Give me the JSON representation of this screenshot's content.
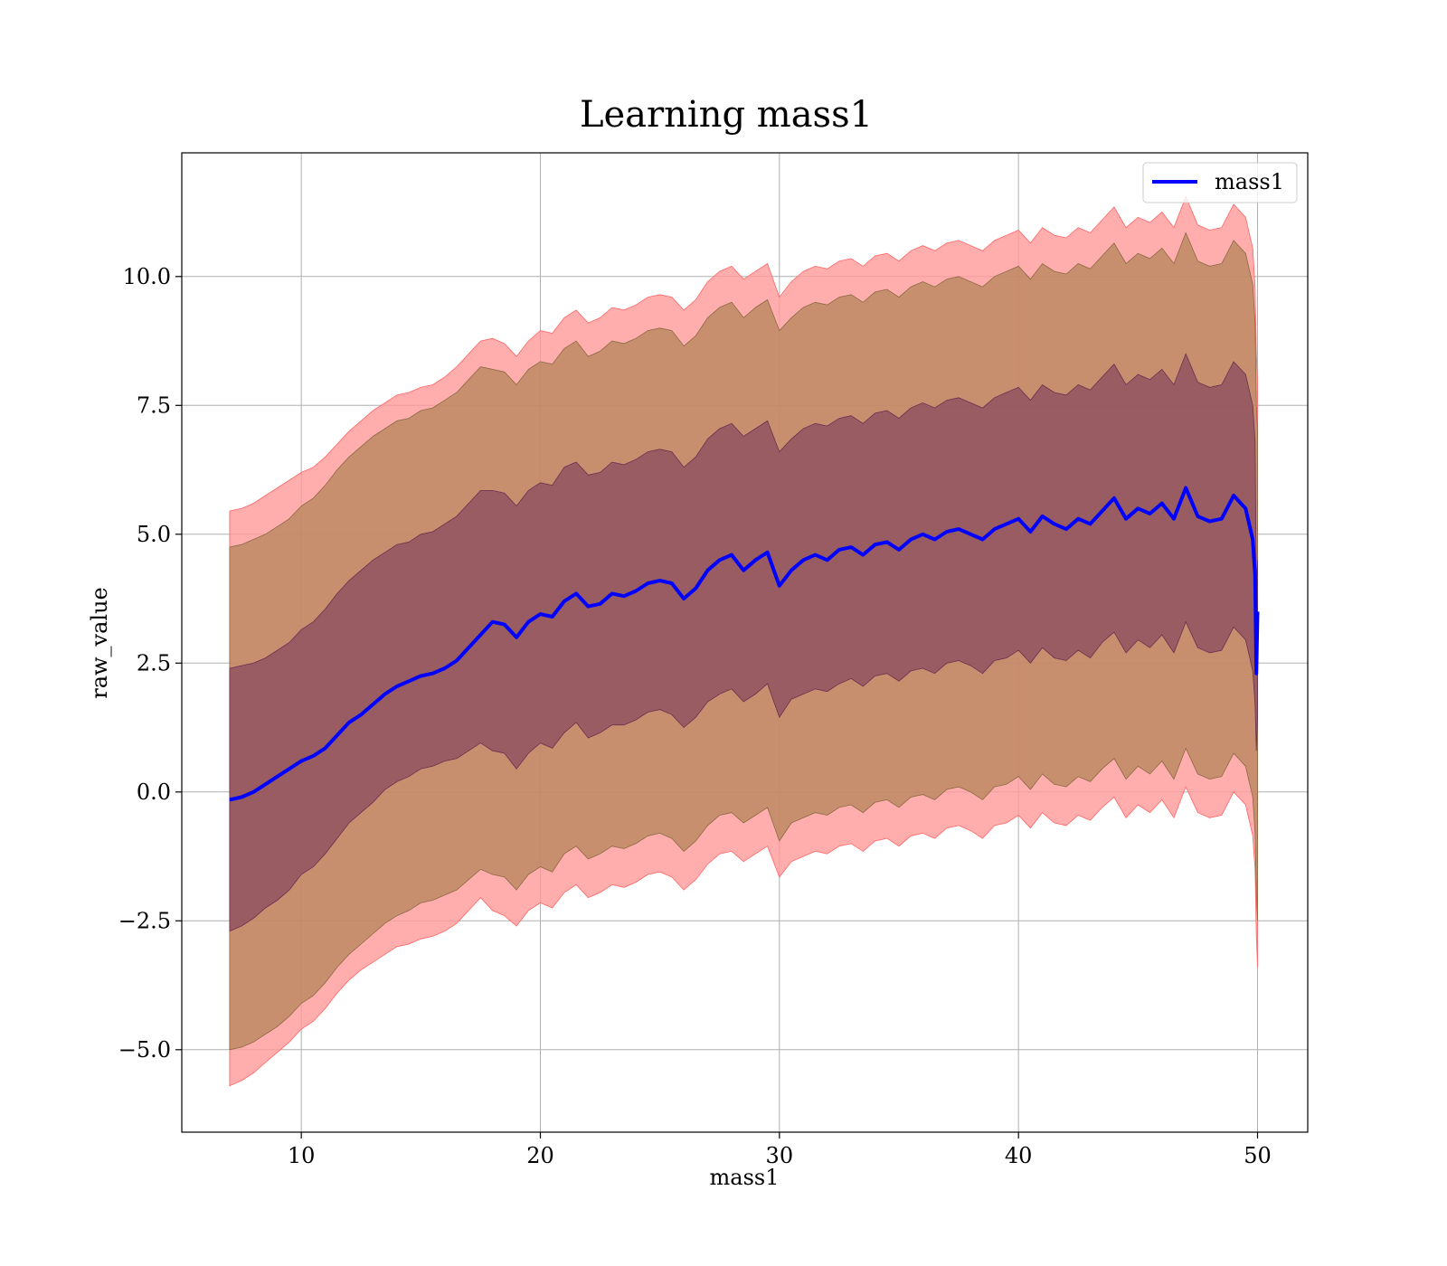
{
  "chart_data": {
    "type": "line",
    "title": "Learning mass1",
    "xlabel": "mass1",
    "ylabel": "raw_value",
    "xlim": [
      5.0,
      52.1
    ],
    "ylim": [
      -6.6,
      12.4
    ],
    "xticks": [
      10,
      20,
      30,
      40,
      50
    ],
    "xtick_labels": [
      "10",
      "20",
      "30",
      "40",
      "50"
    ],
    "yticks": [
      -5.0,
      -2.5,
      0.0,
      2.5,
      5.0,
      7.5,
      10.0
    ],
    "ytick_labels": [
      "−5.0",
      "−2.5",
      "0.0",
      "2.5",
      "5.0",
      "7.5",
      "10.0"
    ],
    "grid": true,
    "legend_position": "upper-right",
    "colors": {
      "line": "#0000ff",
      "band_outer": "#ff9999",
      "band_middle": "#b5855a",
      "band_inner": "#7a3a5a"
    },
    "series": [
      {
        "name": "mass1",
        "x": [
          7.0,
          7.5,
          8.0,
          8.5,
          9.0,
          9.5,
          10.0,
          10.5,
          11.0,
          11.5,
          12.0,
          12.5,
          13.0,
          13.5,
          14.0,
          14.5,
          15.0,
          15.5,
          16.0,
          16.5,
          17.0,
          17.5,
          18.0,
          18.5,
          19.0,
          19.5,
          20.0,
          20.5,
          21.0,
          21.5,
          22.0,
          22.5,
          23.0,
          23.5,
          24.0,
          24.5,
          25.0,
          25.5,
          26.0,
          26.5,
          27.0,
          27.5,
          28.0,
          28.5,
          29.0,
          29.5,
          30.0,
          30.5,
          31.0,
          31.5,
          32.0,
          32.5,
          33.0,
          33.5,
          34.0,
          34.5,
          35.0,
          35.5,
          36.0,
          36.5,
          37.0,
          37.5,
          38.0,
          38.5,
          39.0,
          39.5,
          40.0,
          40.5,
          41.0,
          41.5,
          42.0,
          42.5,
          43.0,
          43.5,
          44.0,
          44.5,
          45.0,
          45.5,
          46.0,
          46.5,
          47.0,
          47.5,
          48.0,
          48.5,
          49.0,
          49.5,
          49.8,
          49.9,
          49.95,
          50.0
        ],
        "y": [
          -0.15,
          -0.1,
          0.0,
          0.15,
          0.3,
          0.45,
          0.6,
          0.7,
          0.85,
          1.1,
          1.35,
          1.5,
          1.7,
          1.9,
          2.05,
          2.15,
          2.25,
          2.3,
          2.4,
          2.55,
          2.8,
          3.05,
          3.3,
          3.25,
          3.0,
          3.3,
          3.45,
          3.4,
          3.7,
          3.85,
          3.6,
          3.65,
          3.85,
          3.8,
          3.9,
          4.05,
          4.1,
          4.05,
          3.75,
          3.95,
          4.3,
          4.5,
          4.6,
          4.3,
          4.5,
          4.65,
          4.0,
          4.3,
          4.5,
          4.6,
          4.5,
          4.7,
          4.75,
          4.6,
          4.8,
          4.85,
          4.7,
          4.9,
          5.0,
          4.9,
          5.05,
          5.1,
          5.0,
          4.9,
          5.1,
          5.2,
          5.3,
          5.05,
          5.35,
          5.2,
          5.1,
          5.3,
          5.2,
          5.45,
          5.7,
          5.3,
          5.5,
          5.4,
          5.6,
          5.3,
          5.9,
          5.35,
          5.25,
          5.3,
          5.75,
          5.5,
          4.9,
          4.2,
          2.3,
          3.5
        ],
        "lower_1sigma": [
          -2.7,
          -2.6,
          -2.45,
          -2.25,
          -2.1,
          -1.9,
          -1.6,
          -1.45,
          -1.2,
          -0.9,
          -0.6,
          -0.4,
          -0.2,
          0.05,
          0.2,
          0.3,
          0.45,
          0.5,
          0.6,
          0.65,
          0.8,
          0.95,
          0.8,
          0.75,
          0.45,
          0.75,
          0.95,
          0.85,
          1.15,
          1.35,
          1.05,
          1.15,
          1.3,
          1.3,
          1.4,
          1.55,
          1.6,
          1.5,
          1.25,
          1.45,
          1.75,
          1.9,
          2.0,
          1.75,
          1.9,
          2.1,
          1.45,
          1.8,
          1.9,
          2.0,
          1.95,
          2.1,
          2.2,
          2.05,
          2.25,
          2.3,
          2.15,
          2.35,
          2.4,
          2.3,
          2.5,
          2.55,
          2.45,
          2.3,
          2.55,
          2.6,
          2.75,
          2.5,
          2.8,
          2.6,
          2.55,
          2.75,
          2.6,
          2.9,
          3.1,
          2.7,
          2.95,
          2.8,
          3.05,
          2.7,
          3.3,
          2.8,
          2.7,
          2.75,
          3.2,
          2.95,
          2.35,
          1.7,
          0.8,
          1.5
        ],
        "upper_1sigma": [
          2.4,
          2.45,
          2.5,
          2.6,
          2.75,
          2.9,
          3.15,
          3.3,
          3.55,
          3.85,
          4.1,
          4.3,
          4.5,
          4.65,
          4.8,
          4.85,
          5.0,
          5.05,
          5.2,
          5.35,
          5.6,
          5.85,
          5.85,
          5.8,
          5.55,
          5.85,
          6.0,
          5.95,
          6.3,
          6.4,
          6.15,
          6.2,
          6.4,
          6.35,
          6.45,
          6.6,
          6.65,
          6.6,
          6.3,
          6.5,
          6.85,
          7.05,
          7.15,
          6.9,
          7.05,
          7.2,
          6.6,
          6.85,
          7.05,
          7.15,
          7.1,
          7.25,
          7.3,
          7.15,
          7.35,
          7.4,
          7.25,
          7.45,
          7.55,
          7.45,
          7.6,
          7.65,
          7.55,
          7.45,
          7.65,
          7.75,
          7.85,
          7.6,
          7.9,
          7.75,
          7.7,
          7.9,
          7.8,
          8.05,
          8.3,
          7.9,
          8.1,
          8.0,
          8.2,
          7.9,
          8.5,
          7.95,
          7.85,
          7.9,
          8.35,
          8.1,
          7.5,
          6.8,
          4.0,
          4.5
        ],
        "lower_2sigma": [
          -5.0,
          -4.95,
          -4.85,
          -4.7,
          -4.55,
          -4.35,
          -4.1,
          -3.95,
          -3.7,
          -3.4,
          -3.15,
          -2.95,
          -2.75,
          -2.55,
          -2.4,
          -2.3,
          -2.15,
          -2.1,
          -2.0,
          -1.9,
          -1.7,
          -1.5,
          -1.6,
          -1.65,
          -1.9,
          -1.6,
          -1.45,
          -1.55,
          -1.2,
          -1.05,
          -1.3,
          -1.2,
          -1.05,
          -1.1,
          -1.0,
          -0.85,
          -0.8,
          -0.9,
          -1.15,
          -0.95,
          -0.65,
          -0.45,
          -0.4,
          -0.6,
          -0.45,
          -0.3,
          -0.95,
          -0.6,
          -0.5,
          -0.4,
          -0.45,
          -0.3,
          -0.25,
          -0.4,
          -0.2,
          -0.15,
          -0.3,
          -0.1,
          -0.05,
          -0.15,
          0.05,
          0.1,
          0.0,
          -0.15,
          0.1,
          0.15,
          0.3,
          0.05,
          0.35,
          0.15,
          0.1,
          0.3,
          0.2,
          0.45,
          0.65,
          0.25,
          0.5,
          0.35,
          0.6,
          0.25,
          0.85,
          0.35,
          0.25,
          0.3,
          0.75,
          0.5,
          -0.1,
          -0.8,
          -2.0,
          -2.5
        ],
        "upper_2sigma": [
          4.75,
          4.8,
          4.9,
          5.0,
          5.15,
          5.3,
          5.55,
          5.7,
          5.95,
          6.25,
          6.5,
          6.7,
          6.9,
          7.05,
          7.2,
          7.25,
          7.4,
          7.45,
          7.6,
          7.75,
          8.0,
          8.25,
          8.2,
          8.15,
          7.9,
          8.2,
          8.35,
          8.3,
          8.6,
          8.75,
          8.45,
          8.55,
          8.75,
          8.7,
          8.8,
          8.95,
          9.0,
          8.95,
          8.65,
          8.85,
          9.2,
          9.4,
          9.5,
          9.2,
          9.4,
          9.55,
          8.95,
          9.2,
          9.4,
          9.5,
          9.45,
          9.6,
          9.65,
          9.5,
          9.7,
          9.75,
          9.6,
          9.8,
          9.9,
          9.8,
          9.95,
          10.0,
          9.9,
          9.8,
          10.0,
          10.1,
          10.2,
          9.95,
          10.25,
          10.1,
          10.05,
          10.25,
          10.15,
          10.4,
          10.65,
          10.25,
          10.45,
          10.35,
          10.55,
          10.25,
          10.85,
          10.3,
          10.2,
          10.25,
          10.7,
          10.45,
          9.85,
          9.1,
          7.5,
          7.0
        ],
        "lower_3sigma": [
          -5.7,
          -5.6,
          -5.45,
          -5.25,
          -5.05,
          -4.85,
          -4.6,
          -4.45,
          -4.2,
          -3.9,
          -3.65,
          -3.45,
          -3.3,
          -3.15,
          -3.0,
          -2.95,
          -2.85,
          -2.8,
          -2.7,
          -2.55,
          -2.3,
          -2.05,
          -2.3,
          -2.4,
          -2.6,
          -2.3,
          -2.15,
          -2.25,
          -1.95,
          -1.8,
          -2.05,
          -1.95,
          -1.8,
          -1.85,
          -1.75,
          -1.6,
          -1.55,
          -1.65,
          -1.9,
          -1.7,
          -1.4,
          -1.2,
          -1.15,
          -1.35,
          -1.2,
          -1.05,
          -1.65,
          -1.35,
          -1.25,
          -1.15,
          -1.2,
          -1.05,
          -1.0,
          -1.15,
          -0.95,
          -0.9,
          -1.05,
          -0.85,
          -0.8,
          -0.9,
          -0.7,
          -0.65,
          -0.75,
          -0.9,
          -0.65,
          -0.6,
          -0.45,
          -0.7,
          -0.4,
          -0.6,
          -0.65,
          -0.45,
          -0.55,
          -0.3,
          -0.1,
          -0.5,
          -0.25,
          -0.4,
          -0.15,
          -0.5,
          0.1,
          -0.4,
          -0.5,
          -0.45,
          0.0,
          -0.25,
          -0.85,
          -1.5,
          -2.8,
          -3.4
        ],
        "upper_3sigma": [
          5.45,
          5.5,
          5.6,
          5.75,
          5.9,
          6.05,
          6.2,
          6.3,
          6.5,
          6.75,
          7.0,
          7.2,
          7.4,
          7.55,
          7.7,
          7.75,
          7.85,
          7.9,
          8.05,
          8.25,
          8.5,
          8.75,
          8.8,
          8.7,
          8.45,
          8.75,
          8.95,
          8.9,
          9.2,
          9.35,
          9.1,
          9.2,
          9.4,
          9.35,
          9.45,
          9.6,
          9.65,
          9.6,
          9.35,
          9.55,
          9.9,
          10.1,
          10.2,
          9.95,
          10.1,
          10.25,
          9.6,
          9.9,
          10.1,
          10.2,
          10.15,
          10.3,
          10.35,
          10.2,
          10.4,
          10.45,
          10.3,
          10.5,
          10.6,
          10.5,
          10.65,
          10.7,
          10.6,
          10.5,
          10.7,
          10.8,
          10.9,
          10.65,
          10.95,
          10.8,
          10.75,
          10.95,
          10.85,
          11.1,
          11.35,
          10.95,
          11.15,
          11.05,
          11.25,
          10.95,
          11.55,
          11.0,
          10.9,
          10.95,
          11.4,
          11.15,
          10.55,
          9.8,
          8.5,
          8.0
        ]
      }
    ]
  }
}
